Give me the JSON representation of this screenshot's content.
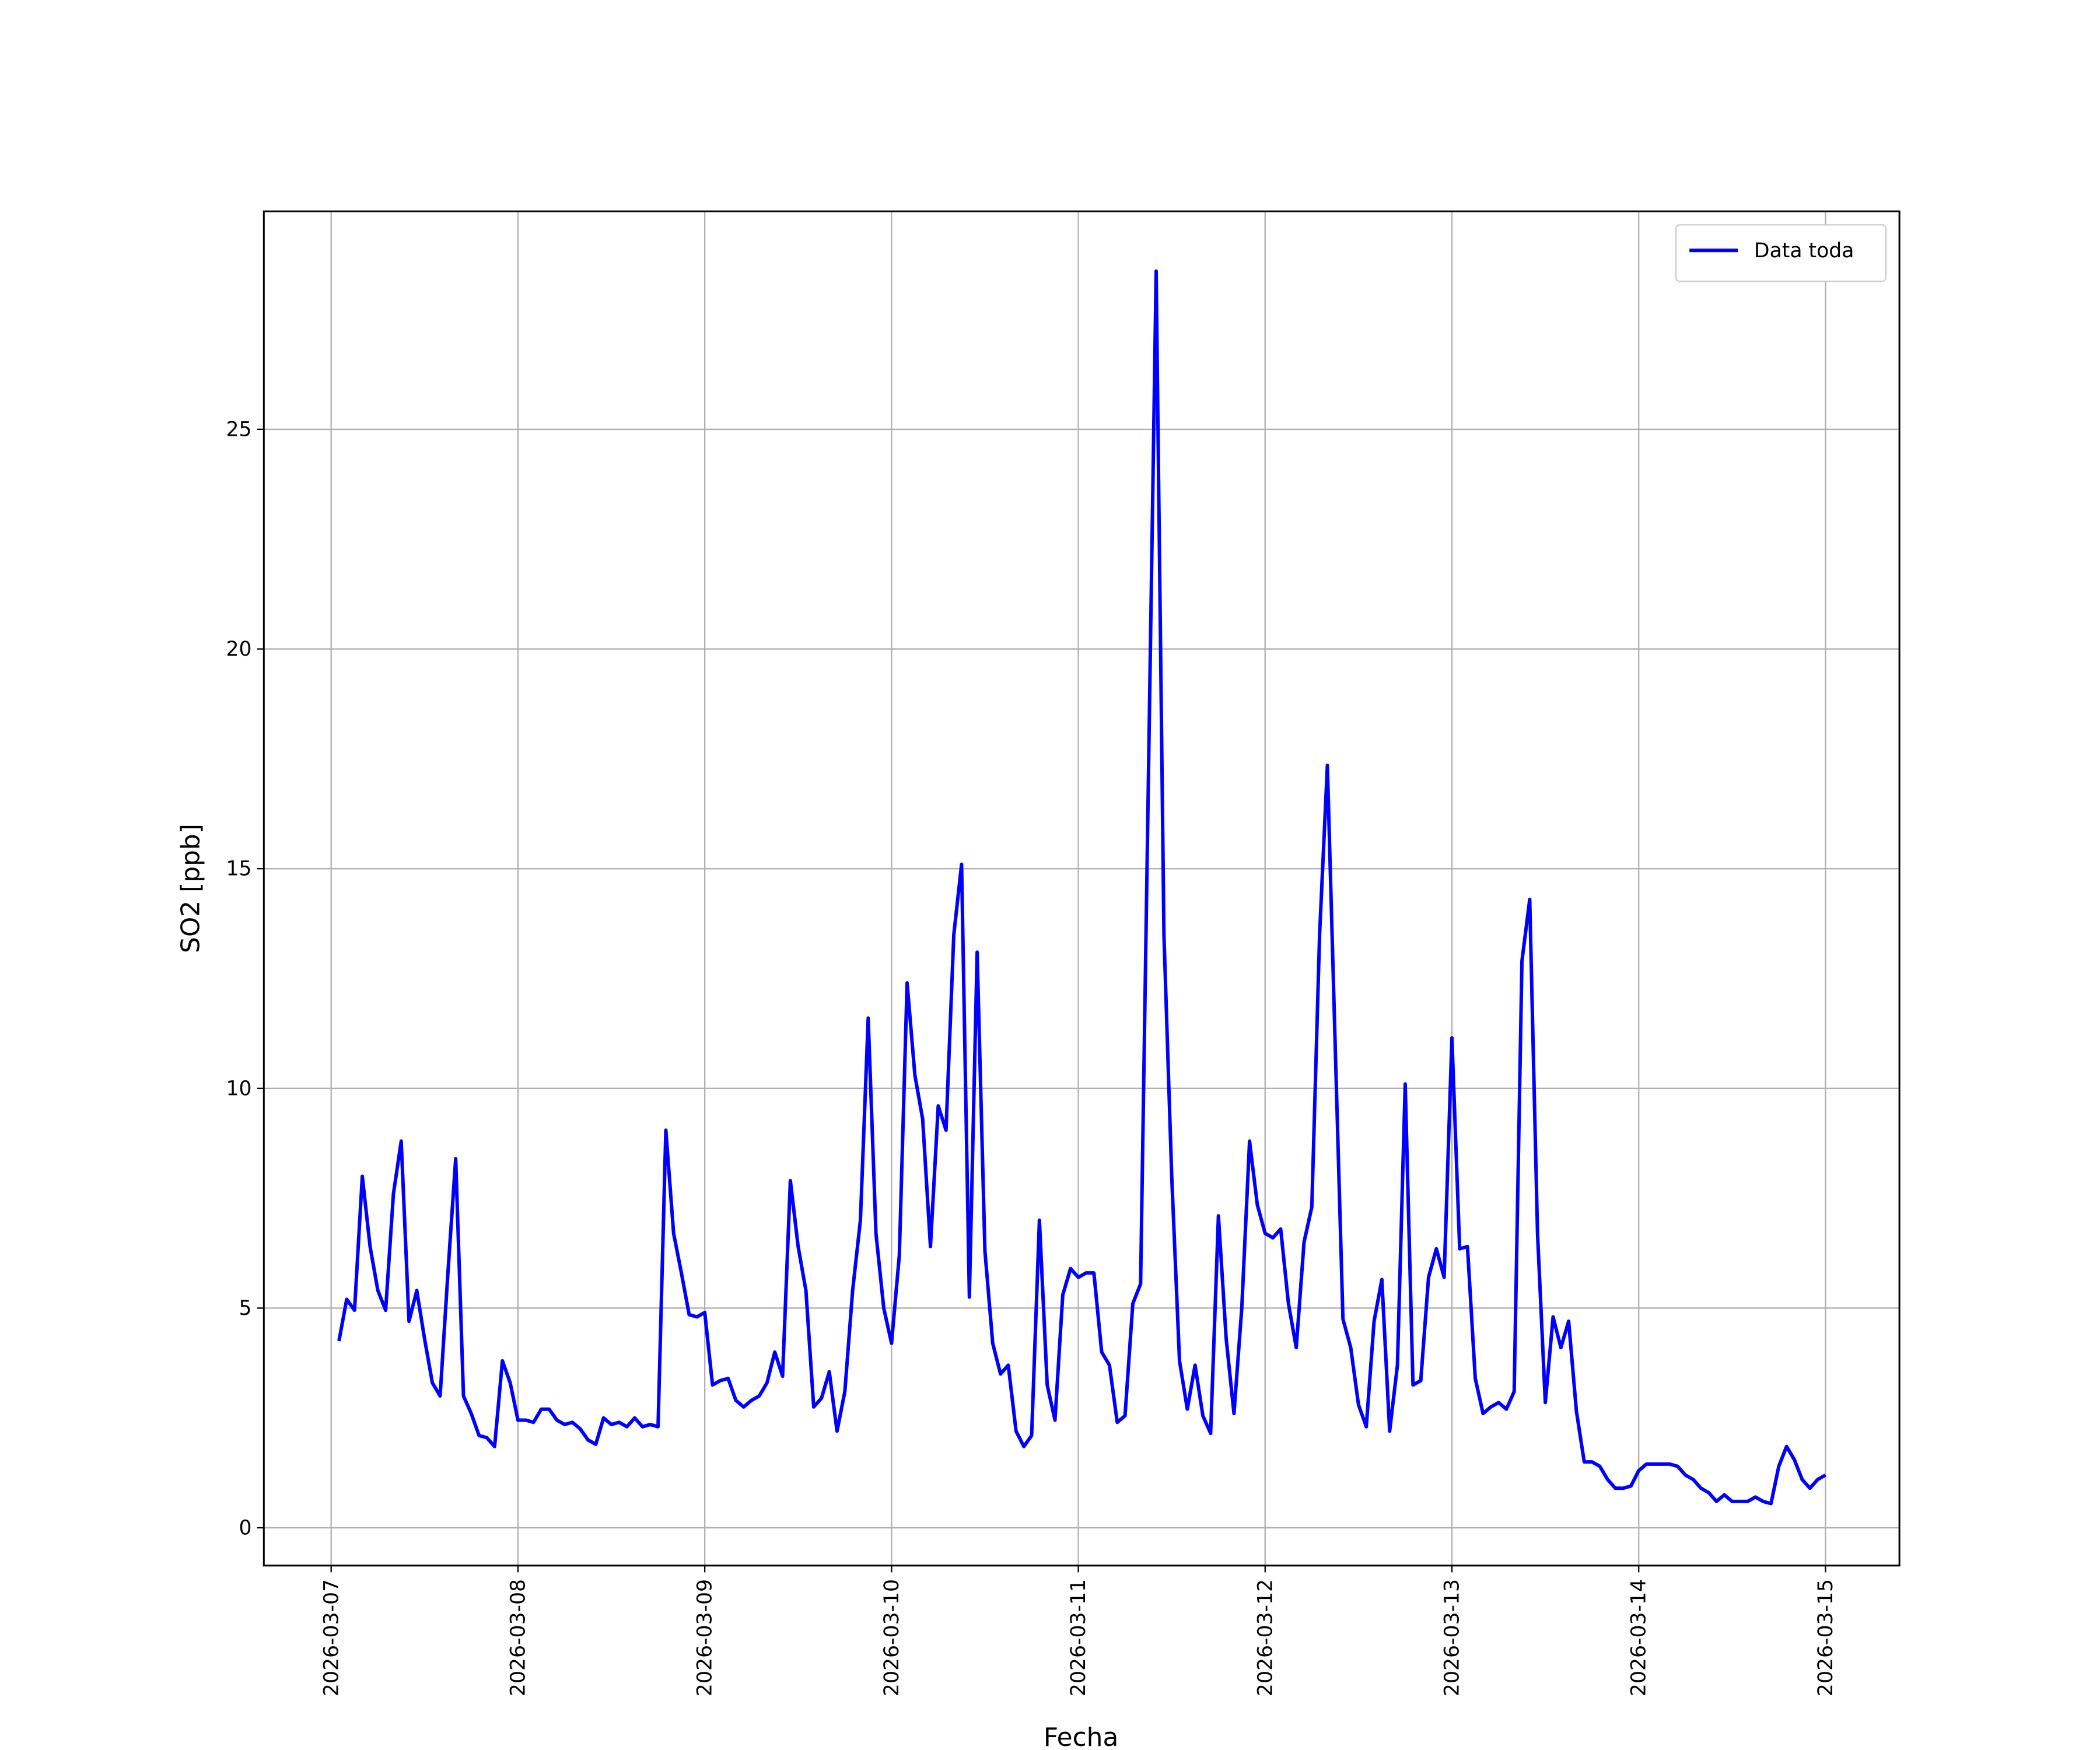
{
  "chart_data": {
    "type": "line",
    "xlabel": "Fecha",
    "ylabel": "SO2 [ppb]",
    "x": [
      "2026-03-07T01:00",
      "2026-03-07T02:00",
      "2026-03-07T03:00",
      "2026-03-07T04:00",
      "2026-03-07T05:00",
      "2026-03-07T06:00",
      "2026-03-07T07:00",
      "2026-03-07T08:00",
      "2026-03-07T09:00",
      "2026-03-07T10:00",
      "2026-03-07T11:00",
      "2026-03-07T12:00",
      "2026-03-07T13:00",
      "2026-03-07T14:00",
      "2026-03-07T15:00",
      "2026-03-07T16:00",
      "2026-03-07T17:00",
      "2026-03-07T18:00",
      "2026-03-07T19:00",
      "2026-03-07T20:00",
      "2026-03-07T21:00",
      "2026-03-07T22:00",
      "2026-03-07T23:00",
      "2026-03-08T00:00",
      "2026-03-08T01:00",
      "2026-03-08T02:00",
      "2026-03-08T03:00",
      "2026-03-08T04:00",
      "2026-03-08T05:00",
      "2026-03-08T06:00",
      "2026-03-08T07:00",
      "2026-03-08T08:00",
      "2026-03-08T09:00",
      "2026-03-08T10:00",
      "2026-03-08T11:00",
      "2026-03-08T12:00",
      "2026-03-08T13:00",
      "2026-03-08T14:00",
      "2026-03-08T15:00",
      "2026-03-08T16:00",
      "2026-03-08T17:00",
      "2026-03-08T18:00",
      "2026-03-08T19:00",
      "2026-03-08T20:00",
      "2026-03-08T21:00",
      "2026-03-08T22:00",
      "2026-03-08T23:00",
      "2026-03-09T00:00",
      "2026-03-09T01:00",
      "2026-03-09T02:00",
      "2026-03-09T03:00",
      "2026-03-09T04:00",
      "2026-03-09T05:00",
      "2026-03-09T06:00",
      "2026-03-09T07:00",
      "2026-03-09T08:00",
      "2026-03-09T09:00",
      "2026-03-09T10:00",
      "2026-03-09T11:00",
      "2026-03-09T12:00",
      "2026-03-09T13:00",
      "2026-03-09T14:00",
      "2026-03-09T15:00",
      "2026-03-09T16:00",
      "2026-03-09T17:00",
      "2026-03-09T18:00",
      "2026-03-09T19:00",
      "2026-03-09T20:00",
      "2026-03-09T21:00",
      "2026-03-09T22:00",
      "2026-03-09T23:00",
      "2026-03-10T00:00",
      "2026-03-10T01:00",
      "2026-03-10T02:00",
      "2026-03-10T03:00",
      "2026-03-10T04:00",
      "2026-03-10T05:00",
      "2026-03-10T06:00",
      "2026-03-10T07:00",
      "2026-03-10T08:00",
      "2026-03-10T09:00",
      "2026-03-10T10:00",
      "2026-03-10T11:00",
      "2026-03-10T12:00",
      "2026-03-10T13:00",
      "2026-03-10T14:00",
      "2026-03-10T15:00",
      "2026-03-10T16:00",
      "2026-03-10T17:00",
      "2026-03-10T18:00",
      "2026-03-10T19:00",
      "2026-03-10T20:00",
      "2026-03-10T21:00",
      "2026-03-10T22:00",
      "2026-03-10T23:00",
      "2026-03-11T00:00",
      "2026-03-11T01:00",
      "2026-03-11T02:00",
      "2026-03-11T03:00",
      "2026-03-11T04:00",
      "2026-03-11T05:00",
      "2026-03-11T06:00",
      "2026-03-11T07:00",
      "2026-03-11T08:00",
      "2026-03-11T09:00",
      "2026-03-11T10:00",
      "2026-03-11T11:00",
      "2026-03-11T12:00",
      "2026-03-11T13:00",
      "2026-03-11T14:00",
      "2026-03-11T15:00",
      "2026-03-11T16:00",
      "2026-03-11T17:00",
      "2026-03-11T18:00",
      "2026-03-11T19:00",
      "2026-03-11T20:00",
      "2026-03-11T21:00",
      "2026-03-11T22:00",
      "2026-03-11T23:00",
      "2026-03-12T00:00",
      "2026-03-12T01:00",
      "2026-03-12T02:00",
      "2026-03-12T03:00",
      "2026-03-12T04:00",
      "2026-03-12T05:00",
      "2026-03-12T06:00",
      "2026-03-12T07:00",
      "2026-03-12T08:00",
      "2026-03-12T09:00",
      "2026-03-12T10:00",
      "2026-03-12T11:00",
      "2026-03-12T12:00",
      "2026-03-12T13:00",
      "2026-03-12T14:00",
      "2026-03-12T15:00",
      "2026-03-12T16:00",
      "2026-03-12T17:00",
      "2026-03-12T18:00",
      "2026-03-12T19:00",
      "2026-03-12T20:00",
      "2026-03-12T21:00",
      "2026-03-12T22:00",
      "2026-03-12T23:00",
      "2026-03-13T00:00",
      "2026-03-13T01:00",
      "2026-03-13T02:00",
      "2026-03-13T03:00",
      "2026-03-13T04:00",
      "2026-03-13T05:00",
      "2026-03-13T06:00",
      "2026-03-13T07:00",
      "2026-03-13T08:00",
      "2026-03-13T09:00",
      "2026-03-13T10:00",
      "2026-03-13T11:00",
      "2026-03-13T12:00",
      "2026-03-13T13:00",
      "2026-03-13T14:00",
      "2026-03-13T15:00",
      "2026-03-13T16:00",
      "2026-03-13T17:00",
      "2026-03-13T18:00",
      "2026-03-13T19:00",
      "2026-03-13T20:00",
      "2026-03-13T21:00",
      "2026-03-13T22:00",
      "2026-03-13T23:00",
      "2026-03-14T00:00",
      "2026-03-14T01:00",
      "2026-03-14T02:00",
      "2026-03-14T03:00",
      "2026-03-14T04:00",
      "2026-03-14T05:00",
      "2026-03-14T06:00",
      "2026-03-14T07:00",
      "2026-03-14T08:00",
      "2026-03-14T09:00",
      "2026-03-14T10:00",
      "2026-03-14T11:00",
      "2026-03-14T12:00",
      "2026-03-14T13:00",
      "2026-03-14T14:00",
      "2026-03-14T15:00",
      "2026-03-14T16:00",
      "2026-03-14T17:00",
      "2026-03-14T18:00",
      "2026-03-14T19:00",
      "2026-03-14T20:00",
      "2026-03-14T21:00",
      "2026-03-14T22:00",
      "2026-03-14T23:00",
      "2026-03-15T00:00"
    ],
    "series": [
      {
        "name": "Data toda",
        "color": "#0000ff",
        "values": [
          4.25,
          5.2,
          4.95,
          8.0,
          6.4,
          5.4,
          4.95,
          7.6,
          8.8,
          4.7,
          5.4,
          4.3,
          3.3,
          3.0,
          5.8,
          8.4,
          3.0,
          2.6,
          2.1,
          2.05,
          1.85,
          3.8,
          3.3,
          2.45,
          2.45,
          2.4,
          2.7,
          2.7,
          2.45,
          2.35,
          2.4,
          2.25,
          2.0,
          1.9,
          2.5,
          2.35,
          2.4,
          2.3,
          2.5,
          2.3,
          2.35,
          2.3,
          9.05,
          6.7,
          5.8,
          4.85,
          4.8,
          4.9,
          3.25,
          3.35,
          3.4,
          2.9,
          2.75,
          2.9,
          3.0,
          3.3,
          4.0,
          3.45,
          7.9,
          6.4,
          5.4,
          2.75,
          2.95,
          3.55,
          2.2,
          3.1,
          5.4,
          7.0,
          11.6,
          6.7,
          5.0,
          4.2,
          6.2,
          12.4,
          10.3,
          9.3,
          6.4,
          9.6,
          9.05,
          13.5,
          15.1,
          5.25,
          13.1,
          6.3,
          4.2,
          3.5,
          3.7,
          2.2,
          1.85,
          2.1,
          7.0,
          3.25,
          2.45,
          5.3,
          5.9,
          5.7,
          5.8,
          5.8,
          4.0,
          3.7,
          2.4,
          2.55,
          5.1,
          5.55,
          17.0,
          28.6,
          13.5,
          8.0,
          3.8,
          2.7,
          3.7,
          2.55,
          2.15,
          7.1,
          4.3,
          2.6,
          5.0,
          8.8,
          7.35,
          6.7,
          6.6,
          6.8,
          5.1,
          4.1,
          6.5,
          7.3,
          13.5,
          17.35,
          11.0,
          4.75,
          4.1,
          2.8,
          2.3,
          4.7,
          5.65,
          2.2,
          3.7,
          10.1,
          3.25,
          3.35,
          5.7,
          6.35,
          5.7,
          11.15,
          6.35,
          6.4,
          3.4,
          2.6,
          2.75,
          2.85,
          2.7,
          3.1,
          12.9,
          14.3,
          6.7,
          2.85,
          4.8,
          4.1,
          4.7,
          2.65,
          1.5,
          1.5,
          1.4,
          1.1,
          0.9,
          0.9,
          0.95,
          1.3,
          1.45,
          1.45,
          1.45,
          1.45,
          1.4,
          1.2,
          1.1,
          0.9,
          0.8,
          0.6,
          0.75,
          0.6,
          0.6,
          0.6,
          0.7,
          0.6,
          0.55,
          1.4,
          1.85,
          1.55,
          1.1,
          0.9,
          1.1,
          1.2
        ]
      }
    ],
    "xlim": [
      "2026-03-06T15:21",
      "2026-03-15T09:30"
    ],
    "xticks": [
      "2026-03-07",
      "2026-03-08",
      "2026-03-09",
      "2026-03-10",
      "2026-03-11",
      "2026-03-12",
      "2026-03-13",
      "2026-03-14",
      "2026-03-15"
    ],
    "ylim": [
      -0.86,
      29.96
    ],
    "yticks": [
      0,
      5,
      10,
      15,
      20,
      25
    ],
    "grid": true,
    "legend": "upper right"
  }
}
